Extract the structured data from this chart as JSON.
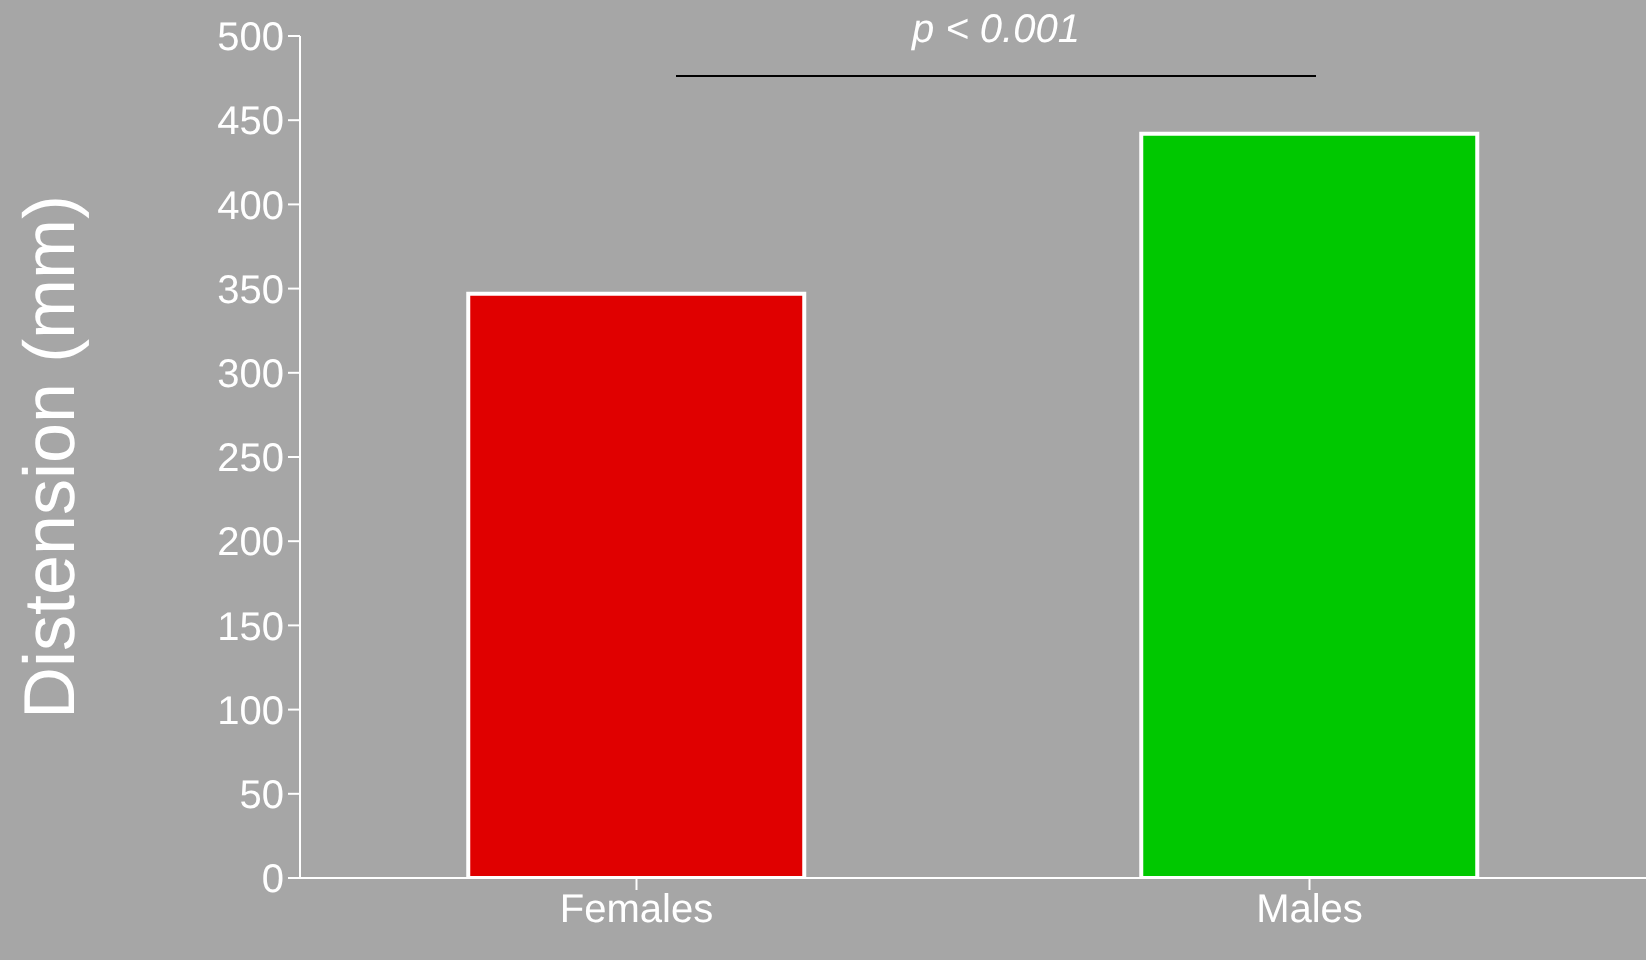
{
  "chart_data": {
    "type": "bar",
    "ylabel": "Distension (mm)",
    "categories": [
      "Females",
      "Males"
    ],
    "values": [
      347,
      442
    ],
    "colors": [
      "#e00000",
      "#00c800"
    ],
    "ylim": [
      0,
      500
    ],
    "yticks": [
      0,
      50,
      100,
      150,
      200,
      250,
      300,
      350,
      400,
      450,
      500
    ],
    "annotations": [
      "p < 0.001"
    ]
  }
}
